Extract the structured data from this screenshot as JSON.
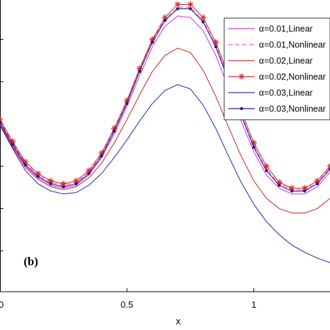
{
  "chart_data": {
    "type": "line",
    "title": "",
    "xlabel": "x",
    "ylabel": "",
    "panel_label": "(b)",
    "xlim": [
      0,
      1.3
    ],
    "x_ticks": [
      0,
      0.5,
      1
    ],
    "x_tick_labels": [
      "0",
      "0.5",
      "1"
    ],
    "ylim": [
      0,
      1
    ],
    "y_tick_values": [
      0.14,
      0.285,
      0.43,
      0.575,
      0.72,
      0.865
    ],
    "grid": false,
    "legend_position": "top-right",
    "series": [
      {
        "name": "α=0.01,Linear",
        "color": "#cc44cc",
        "style": "solid",
        "marker": "none",
        "x": [
          0,
          0.05,
          0.1,
          0.15,
          0.2,
          0.25,
          0.3,
          0.35,
          0.4,
          0.45,
          0.5,
          0.55,
          0.6,
          0.65,
          0.7,
          0.75,
          0.8,
          0.85,
          0.9,
          0.95,
          1.0,
          1.05,
          1.1,
          1.15,
          1.2,
          1.25,
          1.3
        ],
        "y": [
          0.58,
          0.5,
          0.43,
          0.39,
          0.365,
          0.355,
          0.365,
          0.4,
          0.46,
          0.54,
          0.635,
          0.74,
          0.84,
          0.91,
          0.945,
          0.94,
          0.895,
          0.81,
          0.7,
          0.585,
          0.48,
          0.4,
          0.355,
          0.335,
          0.335,
          0.36,
          0.41
        ]
      },
      {
        "name": "α=0.01,Nonlinear",
        "color": "#e055e0",
        "style": "dashed",
        "marker": "none",
        "x": [
          0,
          0.05,
          0.1,
          0.15,
          0.2,
          0.25,
          0.3,
          0.35,
          0.4,
          0.45,
          0.5,
          0.55,
          0.6,
          0.65,
          0.7,
          0.75,
          0.8,
          0.85,
          0.9,
          0.95,
          1.0,
          1.05,
          1.1,
          1.15,
          1.2,
          1.25,
          1.3
        ],
        "y": [
          0.585,
          0.51,
          0.44,
          0.4,
          0.375,
          0.365,
          0.375,
          0.41,
          0.47,
          0.555,
          0.65,
          0.76,
          0.86,
          0.935,
          0.975,
          0.975,
          0.93,
          0.845,
          0.73,
          0.61,
          0.5,
          0.42,
          0.37,
          0.35,
          0.35,
          0.375,
          0.425
        ]
      },
      {
        "name": "α=0.02,Linear",
        "color": "#cc3333",
        "style": "solid",
        "marker": "none",
        "x": [
          0,
          0.05,
          0.1,
          0.15,
          0.2,
          0.25,
          0.3,
          0.35,
          0.4,
          0.45,
          0.5,
          0.55,
          0.6,
          0.65,
          0.7,
          0.75,
          0.8,
          0.85,
          0.9,
          0.95,
          1.0,
          1.05,
          1.1,
          1.15,
          1.2,
          1.25,
          1.3
        ],
        "y": [
          0.575,
          0.495,
          0.425,
          0.385,
          0.36,
          0.35,
          0.36,
          0.39,
          0.44,
          0.51,
          0.59,
          0.675,
          0.755,
          0.81,
          0.835,
          0.82,
          0.76,
          0.67,
          0.565,
          0.465,
          0.38,
          0.32,
          0.285,
          0.27,
          0.27,
          0.285,
          0.32
        ]
      },
      {
        "name": "α=0.02,Nonlinear",
        "color": "#dd2a2a",
        "style": "solid",
        "marker": "star",
        "x": [
          0,
          0.05,
          0.1,
          0.15,
          0.2,
          0.25,
          0.3,
          0.35,
          0.4,
          0.45,
          0.5,
          0.55,
          0.6,
          0.65,
          0.7,
          0.75,
          0.8,
          0.85,
          0.9,
          0.95,
          1.0,
          1.05,
          1.1,
          1.15,
          1.2,
          1.25,
          1.3
        ],
        "y": [
          0.59,
          0.515,
          0.445,
          0.405,
          0.38,
          0.37,
          0.38,
          0.415,
          0.475,
          0.56,
          0.655,
          0.765,
          0.865,
          0.94,
          0.985,
          0.985,
          0.94,
          0.855,
          0.74,
          0.62,
          0.51,
          0.43,
          0.375,
          0.355,
          0.355,
          0.38,
          0.43
        ]
      },
      {
        "name": "α=0.03,Linear",
        "color": "#3333aa",
        "style": "solid",
        "marker": "none",
        "x": [
          0,
          0.05,
          0.1,
          0.15,
          0.2,
          0.25,
          0.3,
          0.35,
          0.4,
          0.45,
          0.5,
          0.55,
          0.6,
          0.65,
          0.7,
          0.75,
          0.8,
          0.85,
          0.9,
          0.95,
          1.0,
          1.05,
          1.1,
          1.15,
          1.2,
          1.25,
          1.3
        ],
        "y": [
          0.57,
          0.49,
          0.415,
          0.37,
          0.345,
          0.335,
          0.34,
          0.365,
          0.405,
          0.46,
          0.52,
          0.585,
          0.645,
          0.69,
          0.71,
          0.695,
          0.64,
          0.56,
          0.465,
          0.375,
          0.3,
          0.24,
          0.195,
          0.16,
          0.135,
          0.115,
          0.1
        ]
      },
      {
        "name": "α=0.03,Nonlinear",
        "color": "#1a1a99",
        "style": "solid",
        "marker": "dot",
        "x": [
          0,
          0.05,
          0.1,
          0.15,
          0.2,
          0.25,
          0.3,
          0.35,
          0.4,
          0.45,
          0.5,
          0.55,
          0.6,
          0.65,
          0.7,
          0.75,
          0.8,
          0.85,
          0.9,
          0.95,
          1.0,
          1.05,
          1.1,
          1.15,
          1.2,
          1.25,
          1.3
        ],
        "y": [
          0.58,
          0.505,
          0.435,
          0.395,
          0.37,
          0.36,
          0.37,
          0.405,
          0.465,
          0.55,
          0.645,
          0.755,
          0.855,
          0.93,
          0.97,
          0.97,
          0.925,
          0.84,
          0.725,
          0.605,
          0.495,
          0.415,
          0.365,
          0.345,
          0.345,
          0.37,
          0.42
        ]
      }
    ]
  }
}
